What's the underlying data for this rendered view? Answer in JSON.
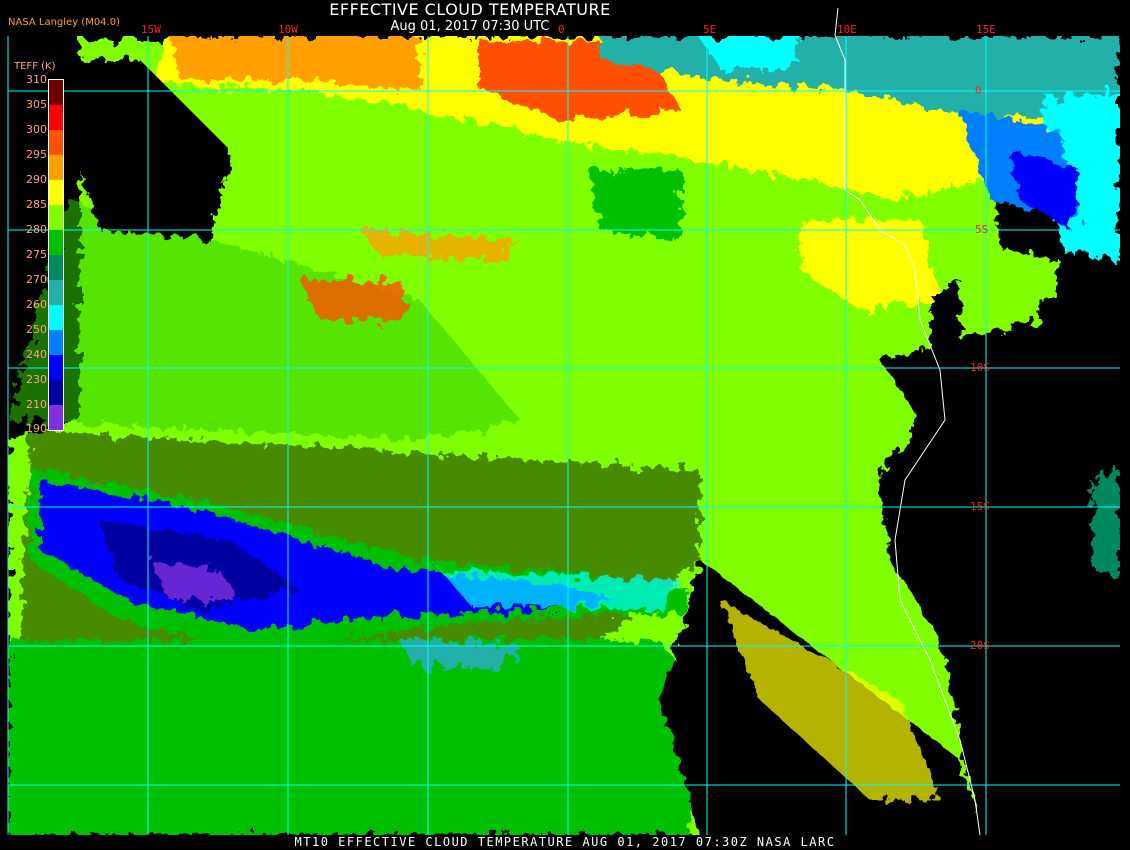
{
  "header": {
    "title": "EFFECTIVE CLOUD TEMPERATURE",
    "subtitle": "Aug 01, 2017 07:30 UTC",
    "organization": "NASA Langley (M04.0)"
  },
  "footer": {
    "caption": "MT10  EFFECTIVE CLOUD TEMPERATURE   AUG 01, 2017 07:30Z   NASA LARC"
  },
  "map": {
    "longitude_labels": [
      "15W",
      "10W",
      "0",
      "5E",
      "10E",
      "15E"
    ],
    "latitude_labels": [
      "0",
      "5S",
      "10S",
      "15S",
      "20S"
    ],
    "grid_color": "#00ffff",
    "coastline_color": "#ffffff",
    "clear_sky_color": "#000000"
  },
  "legend": {
    "title": "TEFF (K)",
    "values": [
      "310",
      "305",
      "300",
      "295",
      "290",
      "285",
      "280",
      "275",
      "270",
      "260",
      "250",
      "240",
      "230",
      "210",
      "190"
    ],
    "colors": [
      "#700000",
      "#ff0000",
      "#ff5000",
      "#ffa000",
      "#ffff00",
      "#80ff00",
      "#00c000",
      "#008860",
      "#20b0a8",
      "#00ffff",
      "#0080ff",
      "#0000ff",
      "#0000a0",
      "#8030e0"
    ]
  }
}
